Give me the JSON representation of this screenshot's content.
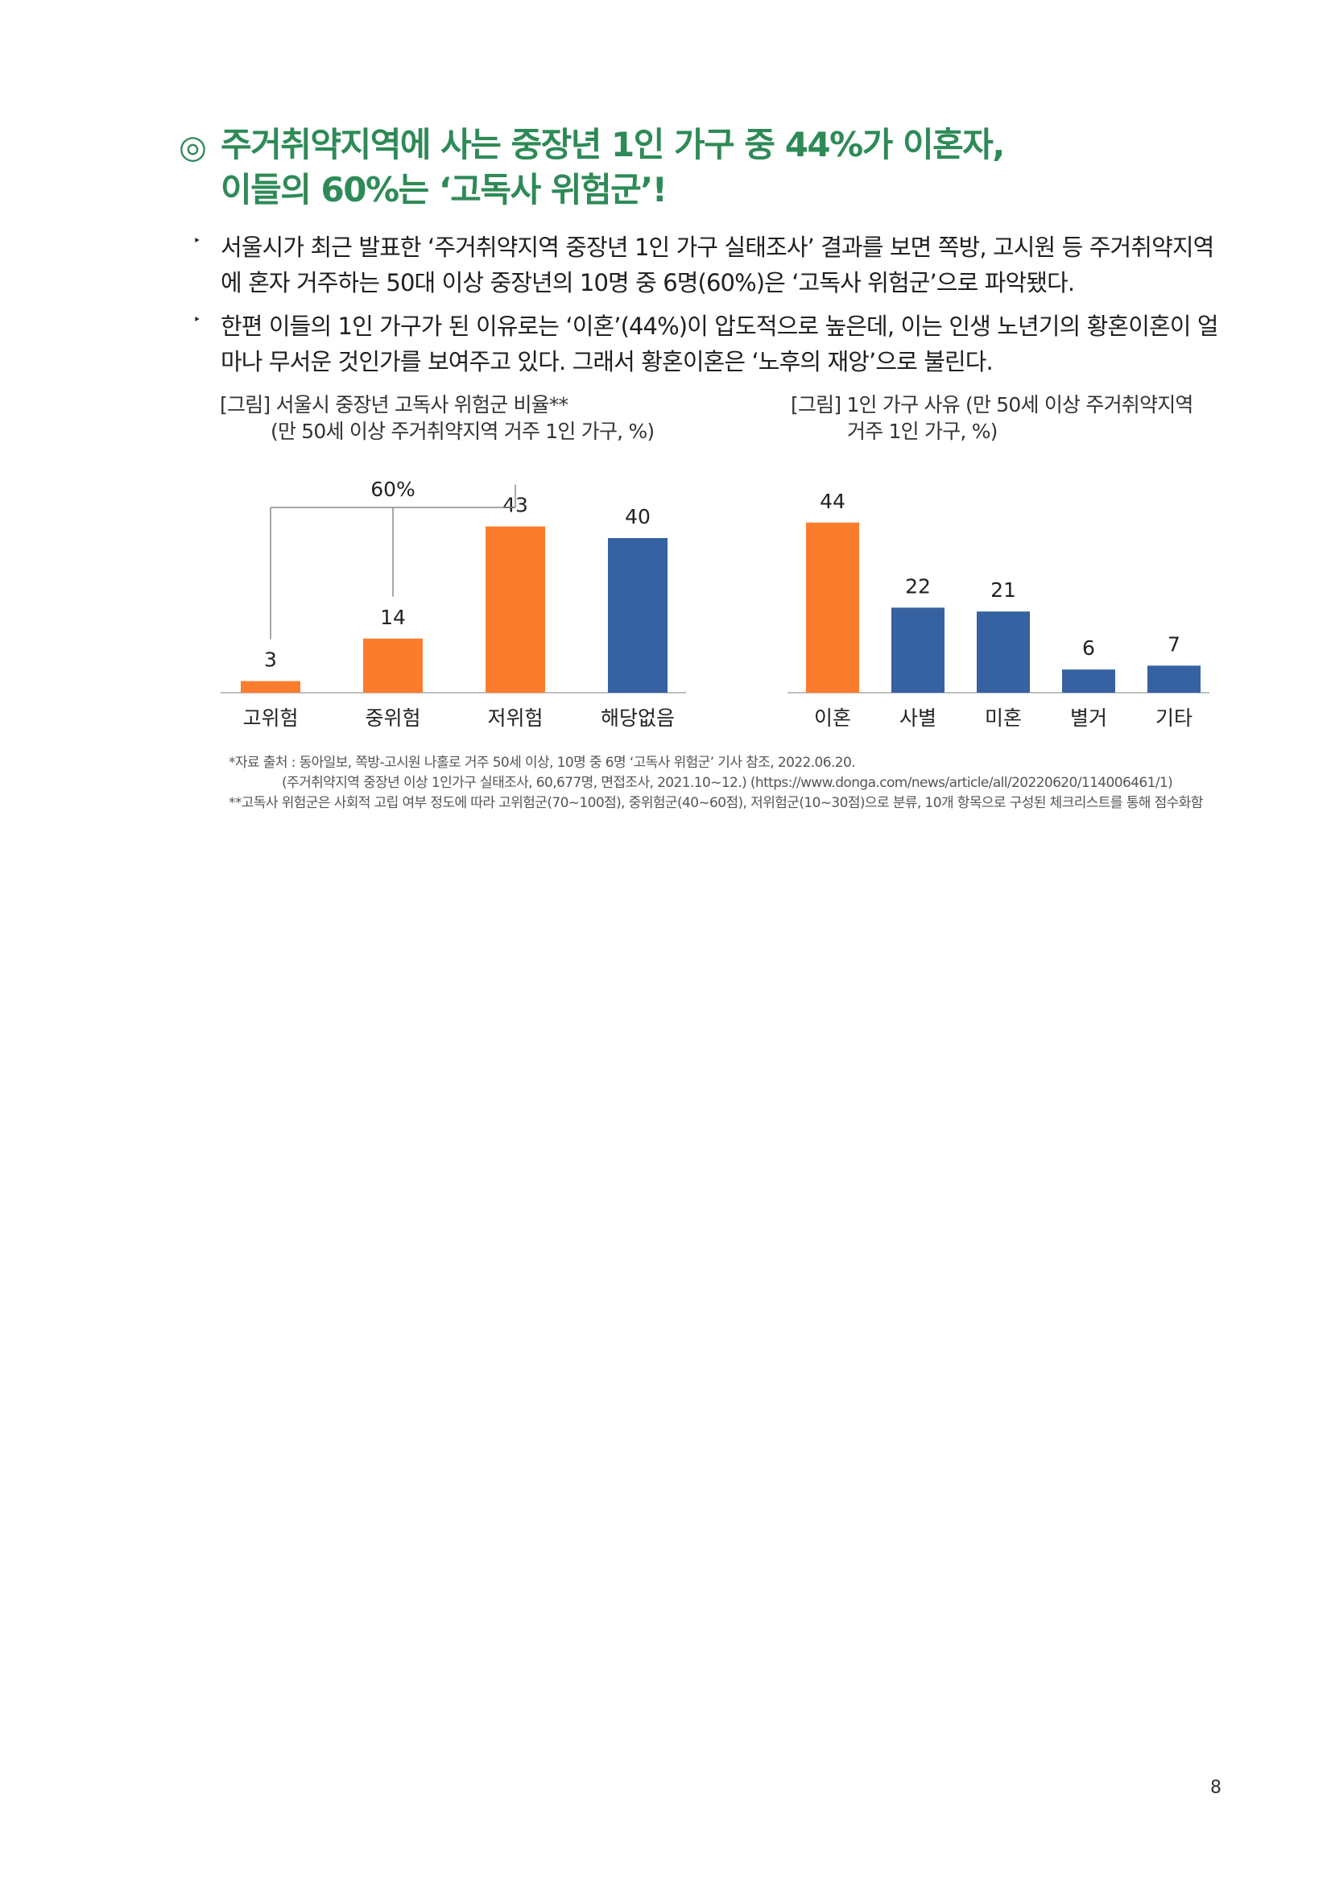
{
  "heading": {
    "mark": "◎",
    "line1": "주거취약지역에 사는 중장년 1인 가구 중 44%가 이혼자,",
    "line2": "이들의 60%는 ‘고독사 위험군’!"
  },
  "bullets": [
    {
      "mark": "‣",
      "text": "서울시가 최근 발표한 ‘주거취약지역 중장년 1인 가구 실태조사’ 결과를 보면 쪽방, 고시원 등 주거취약지역에 혼자 거주하는 50대 이상 중장년의 10명 중 6명(60%)은 ‘고독사 위험군’으로 파악됐다."
    },
    {
      "mark": "‣",
      "text": "한편 이들의 1인 가구가 된 이유로는 ‘이혼’(44%)이 압도적으로 높은데, 이는 인생 노년기의 황혼이혼이 얼마나 무서운 것인가를 보여주고 있다. 그래서 황혼이혼은 ‘노후의 재앙’으로 불린다."
    }
  ],
  "captions": {
    "left": {
      "line1": "[그림] 서울시 중장년 고독사 위험군 비율**",
      "line2": "(만 50세 이상 주거취약지역 거주 1인 가구, %)"
    },
    "right": {
      "line1": "[그림] 1인 가구 사유 (만 50세 이상 주거취약지역",
      "line2": "거주 1인 가구, %)"
    }
  },
  "colors": {
    "accent_green": "#2e8a57",
    "orange": "#fb7c2d",
    "blue": "#3762a2",
    "axis": "#bfbfbf",
    "bracket": "#8c8c8c"
  },
  "chart_data": [
    {
      "type": "bar",
      "title": "[그림] 서울시 중장년 고독사 위험군 비율**",
      "subtitle": "(만 50세 이상 주거취약지역 거주 1인 가구, %)",
      "categories": [
        "고위험",
        "중위험",
        "저위험",
        "해당없음"
      ],
      "values": [
        3,
        14,
        43,
        40
      ],
      "bar_colors": [
        "#fb7c2d",
        "#fb7c2d",
        "#fb7c2d",
        "#3762a2"
      ],
      "ylim": [
        0,
        50
      ],
      "grid": false,
      "annotations": [
        {
          "text": "60%",
          "spans": [
            "고위험",
            "중위험",
            "저위험"
          ]
        }
      ]
    },
    {
      "type": "bar",
      "title": "[그림] 1인 가구 사유 (만 50세 이상 주거취약지역",
      "subtitle": "거주 1인 가구, %)",
      "categories": [
        "이혼",
        "사별",
        "미혼",
        "별거",
        "기타"
      ],
      "values": [
        44,
        22,
        21,
        6,
        7
      ],
      "bar_colors": [
        "#fb7c2d",
        "#3762a2",
        "#3762a2",
        "#3762a2",
        "#3762a2"
      ],
      "ylim": [
        0,
        50
      ],
      "grid": false
    }
  ],
  "footnotes": {
    "line1": "*자료 출처 : 동아일보, 쪽방-고시원 나홀로 거주 50세 이상, 10명 중 6명 ‘고독사 위험군’ 기사 참조, 2022.06.20.",
    "line2": "(주거취약지역 중장년 이상 1인가구 실태조사, 60,677명, 면접조사, 2021.10~12.) (https://www.donga.com/news/article/all/20220620/114006461/1)",
    "line3": "**고독사 위험군은 사회적 고립 여부 정도에 따라 고위험군(70~100점), 중위험군(40~60점), 저위험군(10~30점)으로 분류, 10개 항목으로 구성된 체크리스트를 통해 점수화함"
  },
  "page_number": "8"
}
